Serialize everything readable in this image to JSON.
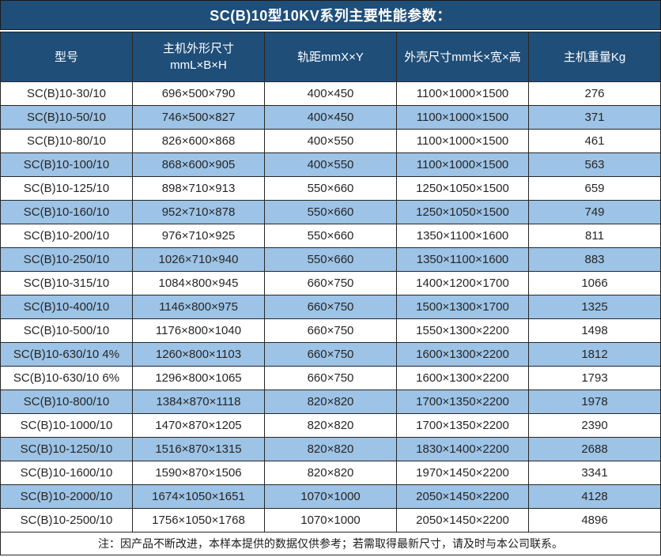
{
  "title": "SC(B)10型10KV系列主要性能参数：",
  "table": {
    "headers": [
      {
        "lines": [
          "型号"
        ]
      },
      {
        "lines": [
          "主机外形尺寸",
          "mmL×B×H"
        ]
      },
      {
        "lines": [
          "轨距mmX×Y"
        ]
      },
      {
        "lines": [
          "外壳尺寸mm长×宽×高"
        ]
      },
      {
        "lines": [
          "主机重量Kg"
        ]
      }
    ],
    "rows": [
      [
        "SC(B)10-30/10",
        "696×500×790",
        "400×450",
        "1100×1000×1500",
        "276"
      ],
      [
        "SC(B)10-50/10",
        "746×500×827",
        "400×450",
        "1100×1000×1500",
        "371"
      ],
      [
        "SC(B)10-80/10",
        "826×600×868",
        "400×550",
        "1100×1000×1500",
        "461"
      ],
      [
        "SC(B)10-100/10",
        "868×600×905",
        "400×550",
        "1100×1000×1500",
        "563"
      ],
      [
        "SC(B)10-125/10",
        "898×710×913",
        "550×660",
        "1250×1050×1500",
        "659"
      ],
      [
        "SC(B)10-160/10",
        "952×710×878",
        "550×660",
        "1250×1050×1500",
        "749"
      ],
      [
        "SC(B)10-200/10",
        "976×710×925",
        "550×660",
        "1350×1100×1600",
        "811"
      ],
      [
        "SC(B)10-250/10",
        "1026×710×940",
        "550×660",
        "1350×1100×1600",
        "883"
      ],
      [
        "SC(B)10-315/10",
        "1084×800×945",
        "660×750",
        "1400×1200×1700",
        "1066"
      ],
      [
        "SC(B)10-400/10",
        "1146×800×975",
        "660×750",
        "1500×1300×1700",
        "1325"
      ],
      [
        "SC(B)10-500/10",
        "1176×800×1040",
        "660×750",
        "1550×1300×2200",
        "1498"
      ],
      [
        "SC(B)10-630/10 4%",
        "1260×800×1103",
        "660×750",
        "1600×1300×2200",
        "1812"
      ],
      [
        "SC(B)10-630/10 6%",
        "1296×800×1065",
        "660×750",
        "1600×1300×2200",
        "1793"
      ],
      [
        "SC(B)10-800/10",
        "1384×870×1118",
        "820×820",
        "1700×1350×2200",
        "1978"
      ],
      [
        "SC(B)10-1000/10",
        "1470×870×1205",
        "820×820",
        "1700×1350×2200",
        "2390"
      ],
      [
        "SC(B)10-1250/10",
        "1516×870×1315",
        "820×820",
        "1830×1400×2200",
        "2688"
      ],
      [
        "SC(B)10-1600/10",
        "1590×870×1506",
        "820×820",
        "1970×1450×2200",
        "3341"
      ],
      [
        "SC(B)10-2000/10",
        "1674×1050×1651",
        "1070×1000",
        "2050×1450×2200",
        "4128"
      ],
      [
        "SC(B)10-2500/10",
        "1756×1050×1768",
        "1070×1000",
        "2050×1450×2200",
        "4896"
      ]
    ]
  },
  "footer_note": "注：因产品不断改进，本样本提供的数据仅供参考；若需取得最新尺寸，请及时与本公司联系。",
  "colors": {
    "header_bg": "#1F4E79",
    "row_alt_bg": "#9DC3E6",
    "row_bg": "#FFFFFF",
    "border": "#262626",
    "header_text": "#FFFFFF",
    "body_text": "#262626"
  }
}
